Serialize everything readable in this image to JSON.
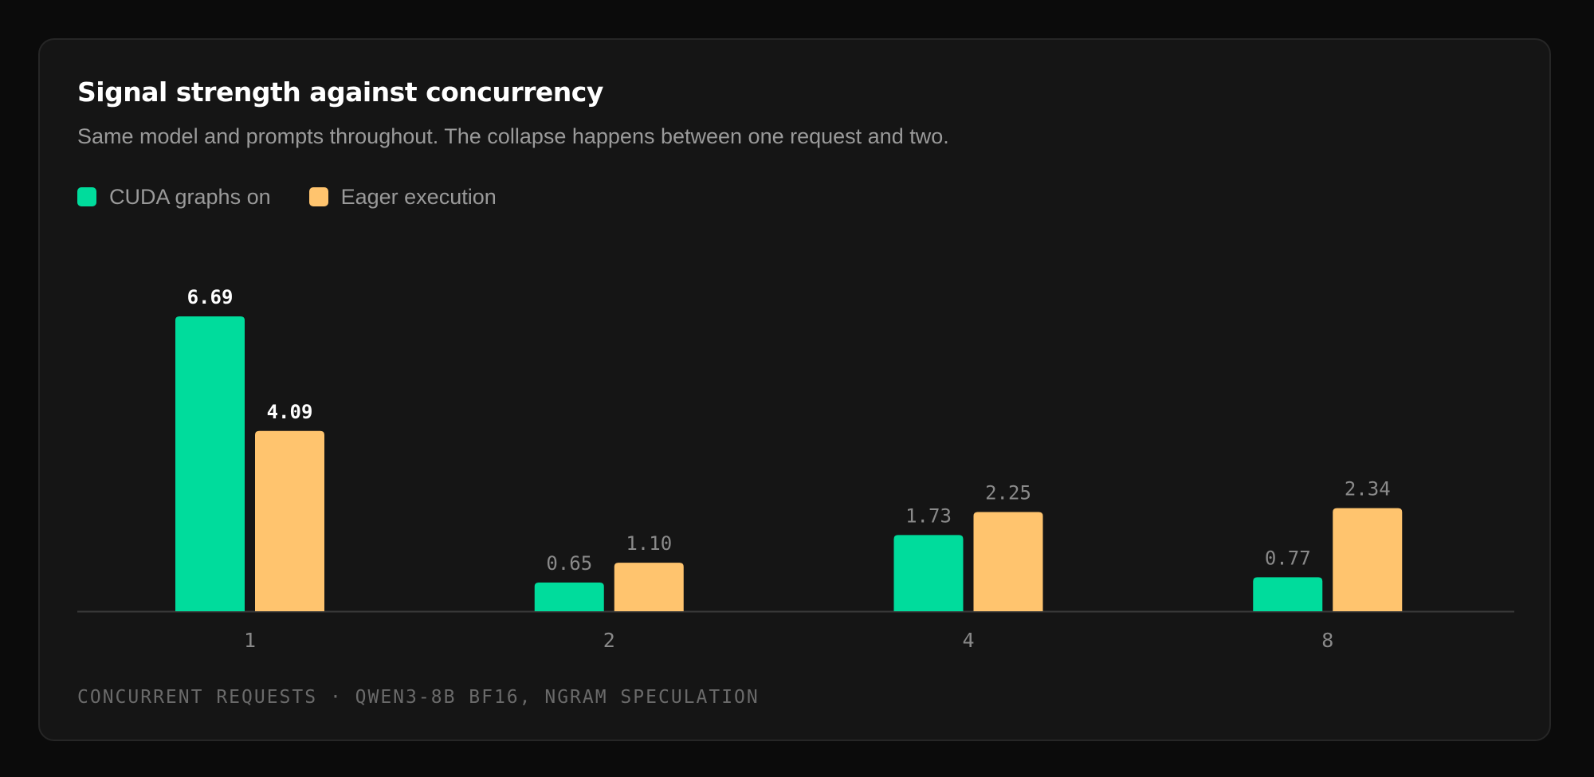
{
  "title": "Signal strength against concurrency",
  "subtitle": "Same model and prompts throughout. The collapse happens between one request and two.",
  "footer": "CONCURRENT REQUESTS · QWEN3-8B BF16, NGRAM SPECULATION",
  "colors": {
    "cuda": "#00dc9c",
    "eager": "#ffc46e",
    "label_highlight": "#ffffff",
    "label_muted": "#8a8a8a",
    "axis": "#3a3a3a",
    "tick": "#8a8a8a"
  },
  "legend": [
    {
      "label": "CUDA graphs on",
      "color": "#00dc9c"
    },
    {
      "label": "Eager execution",
      "color": "#ffc46e"
    }
  ],
  "chart_data": {
    "type": "bar",
    "categories": [
      "1",
      "2",
      "4",
      "8"
    ],
    "series": [
      {
        "name": "CUDA graphs on",
        "values": [
          6.69,
          0.65,
          1.73,
          0.77
        ],
        "labels": [
          "6.69",
          "0.65",
          "1.73",
          "0.77"
        ]
      },
      {
        "name": "Eager execution",
        "values": [
          4.09,
          1.1,
          2.25,
          2.34
        ],
        "labels": [
          "4.09",
          "1.10",
          "2.25",
          "2.34"
        ]
      }
    ],
    "highlighted_category": "1",
    "title": "Signal strength against concurrency",
    "xlabel": "CONCURRENT REQUESTS · QWEN3-8B BF16, NGRAM SPECULATION",
    "ylabel": "",
    "ylim": [
      0,
      6.69
    ],
    "grid": false,
    "legend_position": "top-left"
  }
}
